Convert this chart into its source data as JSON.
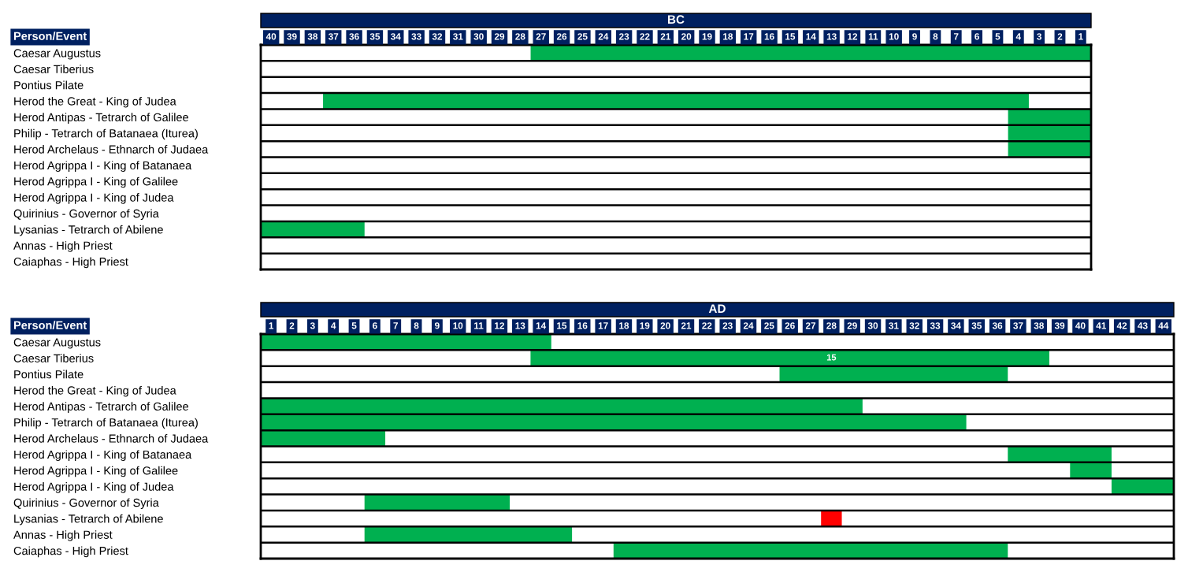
{
  "chart_data": [
    {
      "type": "bar",
      "orientation": "horizontal",
      "title": "BC",
      "ylabel": "Person/Event",
      "categories": [
        "Caesar Augustus",
        "Caesar Tiberius",
        "Pontius Pilate",
        "Herod the Great - King of Judea",
        "Herod Antipas - Tetrarch of Galilee",
        "Philip - Tetrarch of Batanaea (Iturea)",
        "Herod Archelaus - Ethnarch of Judaea",
        "Herod Agrippa I - King of Batanaea",
        "Herod Agrippa I - King of Galilee",
        "Herod Agrippa I - King of Judea",
        "Quirinius - Governor of Syria",
        "Lysanias - Tetrarch of Abilene",
        "Annas - High Priest",
        "Caiaphas - High Priest"
      ],
      "base": [
        0.5,
        null,
        null,
        3.5,
        0.5,
        0.5,
        0.5,
        null,
        null,
        null,
        null,
        35.5,
        null,
        null
      ],
      "values": [
        27,
        null,
        null,
        34,
        4,
        4,
        4,
        null,
        null,
        null,
        null,
        5,
        null,
        null
      ],
      "colors": [
        "#00b050",
        null,
        null,
        "#00b050",
        "#00b050",
        "#00b050",
        "#00b050",
        null,
        null,
        null,
        null,
        "#00b050",
        null,
        null
      ],
      "xlim": [
        40.5,
        0.5
      ],
      "xticks": [
        40,
        39,
        38,
        37,
        36,
        35,
        34,
        33,
        32,
        31,
        30,
        29,
        28,
        27,
        26,
        25,
        24,
        23,
        22,
        21,
        20,
        19,
        18,
        17,
        16,
        15,
        14,
        13,
        12,
        11,
        10,
        9,
        8,
        7,
        6,
        5,
        4,
        3,
        2,
        1
      ],
      "grid": "y"
    },
    {
      "type": "bar",
      "orientation": "horizontal",
      "title": "AD",
      "ylabel": "Person/Event",
      "categories": [
        "Caesar Augustus",
        "Caesar Tiberius",
        "Pontius Pilate",
        "Herod the Great - King of Judea",
        "Herod Antipas - Tetrarch of Galilee",
        "Philip - Tetrarch of Batanaea (Iturea)",
        "Herod Archelaus - Ethnarch of Judaea",
        "Herod Agrippa I - King of Batanaea",
        "Herod Agrippa I - King of Galilee",
        "Herod Agrippa I - King of Judea",
        "Quirinius - Governor of Syria",
        "Lysanias - Tetrarch of Abilene",
        "Annas - High Priest",
        "Caiaphas - High Priest"
      ],
      "base": [
        0.5,
        13.5,
        25.5,
        null,
        0.5,
        0.5,
        0.5,
        36.5,
        39.5,
        41.5,
        5.5,
        27.5,
        5.5,
        17.5
      ],
      "values": [
        14,
        25,
        11,
        null,
        29,
        34,
        6,
        5,
        2,
        3,
        7,
        1,
        10,
        19
      ],
      "colors": [
        "#00b050",
        "#00b050",
        "#00b050",
        null,
        "#00b050",
        "#00b050",
        "#00b050",
        "#00b050",
        "#00b050",
        "#00b050",
        "#00b050",
        "#ff0000",
        "#00b050",
        "#00b050"
      ],
      "xlim": [
        0.5,
        44.5
      ],
      "xticks": [
        1,
        2,
        3,
        4,
        5,
        6,
        7,
        8,
        9,
        10,
        11,
        12,
        13,
        14,
        15,
        16,
        17,
        18,
        19,
        20,
        21,
        22,
        23,
        24,
        25,
        26,
        27,
        28,
        29,
        30,
        31,
        32,
        33,
        34,
        35,
        36,
        37,
        38,
        39,
        40,
        41,
        42,
        43,
        44
      ],
      "annotations": [
        {
          "text": "15",
          "x": 28,
          "y": "Caesar Tiberius"
        }
      ],
      "grid": "y"
    }
  ]
}
